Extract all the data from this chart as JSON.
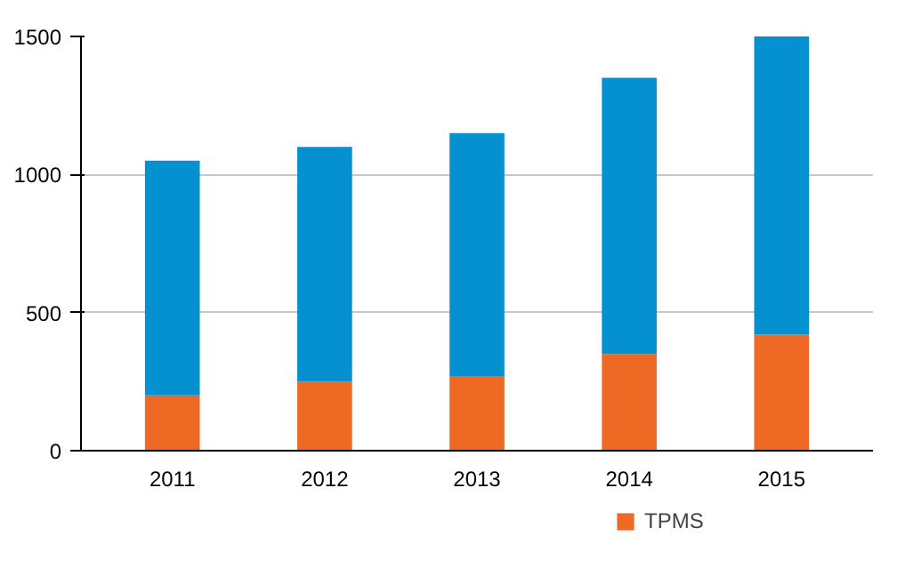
{
  "chart_data": {
    "type": "bar",
    "stacked": true,
    "categories": [
      "2011",
      "2012",
      "2013",
      "2014",
      "2015"
    ],
    "series": [
      {
        "name": "TPMS",
        "color": "#ee6a24",
        "values": [
          200,
          250,
          270,
          350,
          420
        ]
      },
      {
        "color": "#0590cf",
        "values": [
          850,
          850,
          880,
          1000,
          1080
        ]
      }
    ],
    "ylim": [
      0,
      1500
    ],
    "yticks": [
      0,
      500,
      1000,
      1500
    ],
    "grid": "y",
    "legend": "bottom right"
  }
}
